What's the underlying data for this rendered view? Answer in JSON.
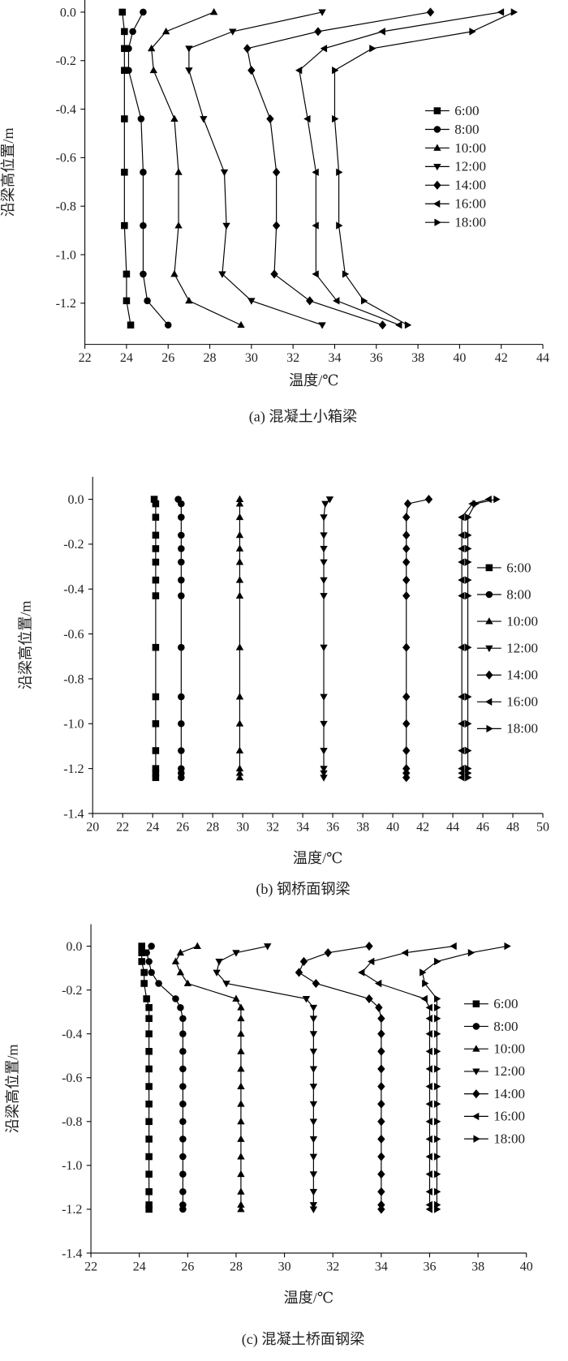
{
  "chart_data": [
    {
      "type": "line",
      "title": "(a) 混凝土小箱梁",
      "x_label": "温度/℃",
      "y_label": "沿梁高位置/m",
      "legend": "right",
      "xlim": [
        22,
        44
      ],
      "xticks": [
        22,
        24,
        26,
        28,
        30,
        32,
        34,
        36,
        38,
        40,
        42,
        44
      ],
      "ylim": [
        -1.37,
        0.05
      ],
      "yticks": [
        {
          "value": 0,
          "label": "0.0"
        },
        -0.2,
        -0.4,
        -0.6,
        -0.8,
        {
          "value": -1,
          "label": "-1.0"
        },
        -1.2
      ],
      "y": [
        0,
        -0.08,
        -0.15,
        -0.24,
        -0.44,
        -0.66,
        -0.88,
        -1.08,
        -1.19,
        -1.29
      ],
      "series": [
        {
          "name": "6:00",
          "marker": "square",
          "color": "#000000",
          "x": [
            23.8,
            23.9,
            23.9,
            23.9,
            23.9,
            23.9,
            23.9,
            24.0,
            24.0,
            24.2
          ]
        },
        {
          "name": "8:00",
          "marker": "circle",
          "color": "#000000",
          "x": [
            24.8,
            24.3,
            24.1,
            24.1,
            24.7,
            24.8,
            24.8,
            24.8,
            25.0,
            26.0
          ]
        },
        {
          "name": "10:00",
          "marker": "triangle-up",
          "color": "#000000",
          "x": [
            28.2,
            25.9,
            25.2,
            25.3,
            26.3,
            26.5,
            26.5,
            26.3,
            27.0,
            29.5
          ]
        },
        {
          "name": "12:00",
          "marker": "triangle-down",
          "color": "#000000",
          "x": [
            33.4,
            29.1,
            27.0,
            27.0,
            27.7,
            28.7,
            28.8,
            28.6,
            30.0,
            33.4
          ]
        },
        {
          "name": "14:00",
          "marker": "diamond",
          "color": "#000000",
          "x": [
            38.6,
            33.2,
            29.8,
            30.0,
            30.9,
            31.2,
            31.2,
            31.1,
            32.8,
            36.3
          ]
        },
        {
          "name": "16:00",
          "marker": "triangle-left",
          "color": "#000000",
          "x": [
            42.0,
            36.3,
            33.5,
            32.3,
            32.7,
            33.1,
            33.1,
            33.1,
            34.1,
            37.1
          ]
        },
        {
          "name": "18:00",
          "marker": "triangle-right",
          "color": "#000000",
          "x": [
            42.6,
            40.6,
            35.8,
            34.0,
            34.0,
            34.2,
            34.2,
            34.5,
            35.4,
            37.5
          ]
        }
      ]
    },
    {
      "type": "line",
      "title": "(b) 钢桥面钢梁",
      "x_label": "温度/℃",
      "y_label": "沿梁高位置/m",
      "legend": "right",
      "xlim": [
        20,
        50
      ],
      "xticks": [
        20,
        22,
        24,
        26,
        28,
        30,
        32,
        34,
        36,
        38,
        40,
        42,
        44,
        46,
        48,
        50
      ],
      "ylim": [
        -1.4,
        0.1
      ],
      "yticks": [
        {
          "value": 0,
          "label": "0.0"
        },
        -0.2,
        -0.4,
        -0.6,
        -0.8,
        {
          "value": -1,
          "label": "-1.0"
        },
        -1.2,
        -1.4
      ],
      "y": [
        0,
        -0.02,
        -0.08,
        -0.16,
        -0.22,
        -0.28,
        -0.36,
        -0.43,
        -0.66,
        -0.88,
        -1.0,
        -1.12,
        -1.2,
        -1.22,
        -1.24
      ],
      "series": [
        {
          "name": "6:00",
          "marker": "square",
          "color": "#000000",
          "x": [
            24.1,
            24.2,
            24.2,
            24.2,
            24.2,
            24.2,
            24.2,
            24.2,
            24.2,
            24.2,
            24.2,
            24.2,
            24.2,
            24.2,
            24.2
          ]
        },
        {
          "name": "8:00",
          "marker": "circle",
          "color": "#000000",
          "x": [
            25.7,
            25.9,
            25.9,
            25.9,
            25.9,
            25.9,
            25.9,
            25.9,
            25.9,
            25.9,
            25.9,
            25.9,
            25.9,
            25.9,
            25.9
          ]
        },
        {
          "name": "10:00",
          "marker": "triangle-up",
          "color": "#000000",
          "x": [
            29.8,
            29.8,
            29.8,
            29.8,
            29.8,
            29.8,
            29.8,
            29.8,
            29.8,
            29.8,
            29.8,
            29.8,
            29.8,
            29.8,
            29.8
          ]
        },
        {
          "name": "12:00",
          "marker": "triangle-down",
          "color": "#000000",
          "x": [
            35.8,
            35.5,
            35.4,
            35.4,
            35.4,
            35.4,
            35.4,
            35.4,
            35.4,
            35.4,
            35.4,
            35.4,
            35.4,
            35.4,
            35.4
          ]
        },
        {
          "name": "14:00",
          "marker": "diamond",
          "color": "#000000",
          "x": [
            42.4,
            41.0,
            40.9,
            40.9,
            40.9,
            40.9,
            40.9,
            40.9,
            40.9,
            40.9,
            40.9,
            40.9,
            40.9,
            40.9,
            40.9
          ]
        },
        {
          "name": "16:00",
          "marker": "triangle-left",
          "color": "#000000",
          "x": [
            46.4,
            45.3,
            44.6,
            44.6,
            44.6,
            44.6,
            44.6,
            44.6,
            44.6,
            44.6,
            44.6,
            44.6,
            44.6,
            44.6,
            44.6
          ]
        },
        {
          "name": "18:00",
          "marker": "triangle-right",
          "color": "#000000",
          "x": [
            46.9,
            45.5,
            45.0,
            45.0,
            45.0,
            45.0,
            45.0,
            45.0,
            45.0,
            45.0,
            45.0,
            45.0,
            45.0,
            45.0,
            45.0
          ]
        }
      ]
    },
    {
      "type": "line",
      "title": "(c) 混凝土桥面钢梁",
      "x_label": "温度/℃",
      "y_label": "沿梁高位置/m",
      "legend": "right",
      "xlim": [
        22,
        40
      ],
      "xticks": [
        22,
        24,
        26,
        28,
        30,
        32,
        34,
        36,
        38,
        40
      ],
      "ylim": [
        -1.4,
        0.1
      ],
      "yticks": [
        {
          "value": 0,
          "label": "0.0"
        },
        -0.2,
        -0.4,
        -0.6,
        -0.8,
        {
          "value": -1,
          "label": "-1.0"
        },
        -1.2,
        -1.4
      ],
      "y": [
        0,
        -0.03,
        -0.07,
        -0.12,
        -0.17,
        -0.24,
        -0.28,
        -0.33,
        -0.4,
        -0.48,
        -0.56,
        -0.64,
        -0.72,
        -0.8,
        -0.88,
        -0.96,
        -1.04,
        -1.12,
        -1.18,
        -1.2
      ],
      "series": [
        {
          "name": "6:00",
          "marker": "square",
          "color": "#000000",
          "x": [
            24.1,
            24.1,
            24.1,
            24.2,
            24.2,
            24.3,
            24.4,
            24.4,
            24.4,
            24.4,
            24.4,
            24.4,
            24.4,
            24.4,
            24.4,
            24.4,
            24.4,
            24.4,
            24.4,
            24.4
          ]
        },
        {
          "name": "8:00",
          "marker": "circle",
          "color": "#000000",
          "x": [
            24.5,
            24.3,
            24.4,
            24.5,
            24.8,
            25.5,
            25.7,
            25.8,
            25.8,
            25.8,
            25.8,
            25.8,
            25.8,
            25.8,
            25.8,
            25.8,
            25.8,
            25.8,
            25.8,
            25.8
          ]
        },
        {
          "name": "10:00",
          "marker": "triangle-up",
          "color": "#000000",
          "x": [
            26.4,
            25.7,
            25.5,
            25.7,
            26.0,
            28.0,
            28.2,
            28.2,
            28.2,
            28.2,
            28.2,
            28.2,
            28.2,
            28.2,
            28.2,
            28.2,
            28.2,
            28.2,
            28.2,
            28.2
          ]
        },
        {
          "name": "12:00",
          "marker": "triangle-down",
          "color": "#000000",
          "x": [
            29.3,
            28.0,
            27.3,
            27.2,
            27.6,
            30.9,
            31.2,
            31.2,
            31.2,
            31.2,
            31.2,
            31.2,
            31.2,
            31.2,
            31.2,
            31.2,
            31.2,
            31.2,
            31.2,
            31.2
          ]
        },
        {
          "name": "14:00",
          "marker": "diamond",
          "color": "#000000",
          "x": [
            33.5,
            31.8,
            30.8,
            30.6,
            31.3,
            33.5,
            33.9,
            34.0,
            34.0,
            34.0,
            34.0,
            34.0,
            34.0,
            34.0,
            34.0,
            34.0,
            34.0,
            34.0,
            34.0,
            34.0
          ]
        },
        {
          "name": "16:00",
          "marker": "triangle-left",
          "color": "#000000",
          "x": [
            37.0,
            35.0,
            33.6,
            33.2,
            33.9,
            35.8,
            36.0,
            36.0,
            36.0,
            36.0,
            36.0,
            36.0,
            36.0,
            36.0,
            36.0,
            36.0,
            36.0,
            36.0,
            36.0,
            36.0
          ]
        },
        {
          "name": "18:00",
          "marker": "triangle-right",
          "color": "#000000",
          "x": [
            39.2,
            37.7,
            36.3,
            35.7,
            35.8,
            36.3,
            36.3,
            36.3,
            36.3,
            36.3,
            36.3,
            36.3,
            36.3,
            36.3,
            36.3,
            36.3,
            36.3,
            36.3,
            36.3,
            36.3
          ]
        }
      ]
    }
  ]
}
